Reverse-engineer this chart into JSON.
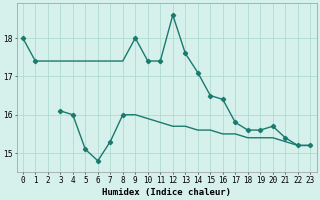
{
  "xlabel": "Humidex (Indice chaleur)",
  "line1": {
    "x": [
      0,
      1,
      2,
      3,
      4,
      5,
      6,
      7,
      8,
      9,
      10,
      11,
      12,
      13,
      14,
      15,
      16,
      17,
      18,
      19,
      20,
      21,
      22,
      23
    ],
    "y": [
      18.0,
      17.4,
      17.4,
      17.4,
      17.4,
      17.4,
      17.4,
      17.4,
      17.4,
      18.0,
      17.4,
      17.4,
      18.6,
      17.6,
      17.1,
      16.5,
      16.4,
      15.8,
      15.6,
      15.6,
      15.7,
      15.4,
      15.2,
      15.2
    ],
    "color": "#1a7a6e",
    "linewidth": 1.0
  },
  "line2": {
    "x": [
      3,
      4,
      5,
      6,
      7,
      8,
      9,
      10,
      11,
      12,
      13,
      14,
      15,
      16,
      17,
      18,
      19,
      20,
      21,
      22,
      23
    ],
    "y": [
      16.1,
      16.0,
      15.1,
      14.8,
      15.3,
      16.0,
      16.0,
      15.9,
      15.8,
      15.7,
      15.7,
      15.6,
      15.6,
      15.5,
      15.5,
      15.4,
      15.4,
      15.4,
      15.3,
      15.2,
      15.2
    ],
    "color": "#1a7a6e",
    "linewidth": 1.0
  },
  "markers_line1": {
    "x": [
      0,
      1,
      9,
      10,
      11,
      12,
      13,
      14,
      15,
      16,
      17,
      18,
      19,
      20,
      21,
      22,
      23
    ],
    "y": [
      18.0,
      17.4,
      18.0,
      17.4,
      17.4,
      18.6,
      17.6,
      17.1,
      16.5,
      16.4,
      15.8,
      15.6,
      15.6,
      15.7,
      15.4,
      15.2,
      15.2
    ]
  },
  "markers_line2": {
    "x": [
      3,
      4,
      5,
      6,
      7,
      8
    ],
    "y": [
      16.1,
      16.0,
      15.1,
      14.8,
      15.3,
      16.0
    ]
  },
  "background_color": "#d6f0ec",
  "grid_color": "#a8d8cc",
  "ylim": [
    14.5,
    18.9
  ],
  "xlim": [
    -0.5,
    23.5
  ],
  "yticks": [
    15,
    16,
    17,
    18
  ],
  "tick_fontsize": 5.5,
  "label_fontsize": 6.5,
  "marker_color": "#1a7a6e",
  "markersize": 2.2
}
